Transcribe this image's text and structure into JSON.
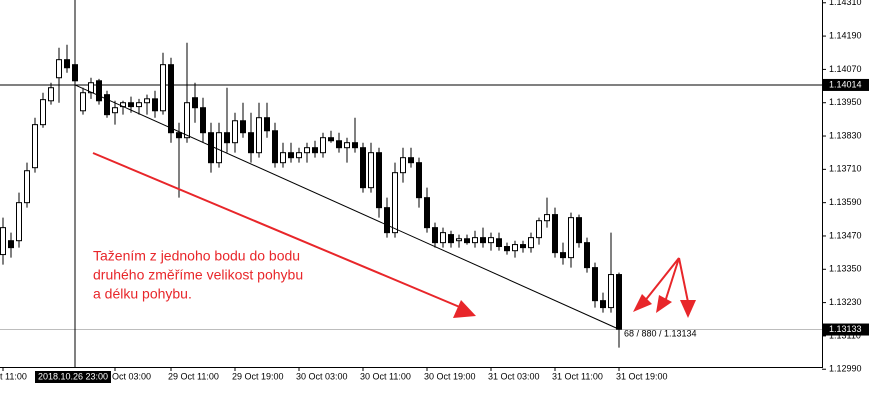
{
  "chart_data": {
    "type": "candlestick",
    "up_color": "#ffffff",
    "down_color": "#000000",
    "edge_color": "#000000",
    "ylim": [
      1.1298,
      1.1432
    ],
    "yticks": [
      {
        "value": 1.1431,
        "label": "1.14310"
      },
      {
        "value": 1.1419,
        "label": "1.14190"
      },
      {
        "value": 1.1407,
        "label": "1.14070"
      },
      {
        "value": 1.1395,
        "label": "1.13950"
      },
      {
        "value": 1.1383,
        "label": "1.13830"
      },
      {
        "value": 1.1371,
        "label": "1.13710"
      },
      {
        "value": 1.1359,
        "label": "1.13590"
      },
      {
        "value": 1.1347,
        "label": "1.13470"
      },
      {
        "value": 1.1335,
        "label": "1.13350"
      },
      {
        "value": 1.1323,
        "label": "1.13230"
      },
      {
        "value": 1.1311,
        "label": "1.13110"
      },
      {
        "value": 1.1299,
        "label": "1.12990"
      }
    ],
    "categories": [
      "t 11:00",
      null,
      null,
      null,
      null,
      null,
      null,
      null,
      null,
      null,
      null,
      null,
      null,
      null,
      "Oct 03:00",
      null,
      null,
      null,
      null,
      null,
      null,
      "29 Oct 11:00",
      null,
      null,
      null,
      null,
      null,
      null,
      null,
      "29 Oct 19:00",
      null,
      null,
      null,
      null,
      null,
      null,
      null,
      "30 Oct 03:00",
      null,
      null,
      null,
      null,
      null,
      null,
      null,
      "30 Oct 11:00",
      null,
      null,
      null,
      null,
      null,
      null,
      null,
      "30 Oct 19:00",
      null,
      null,
      null,
      null,
      null,
      null,
      null,
      "31 Oct 03:00",
      null,
      null,
      null,
      null,
      null,
      null,
      null,
      "31 Oct 11:00",
      null,
      null,
      null,
      null,
      null,
      null,
      null,
      "31 Oct 19:00"
    ],
    "candles": [
      {
        "open": 1.13403,
        "high": 1.13536,
        "low": 1.13367,
        "close": 1.135
      },
      {
        "open": 1.13453,
        "high": 1.13482,
        "low": 1.13392,
        "close": 1.13428
      },
      {
        "open": 1.13453,
        "high": 1.13626,
        "low": 1.13428,
        "close": 1.1359
      },
      {
        "open": 1.1359,
        "high": 1.13734,
        "low": 1.13572,
        "close": 1.13705
      },
      {
        "open": 1.13716,
        "high": 1.13896,
        "low": 1.13698,
        "close": 1.13871
      },
      {
        "open": 1.13871,
        "high": 1.13986,
        "low": 1.1386,
        "close": 1.13961
      },
      {
        "open": 1.13957,
        "high": 1.14022,
        "low": 1.13943,
        "close": 1.14004
      },
      {
        "open": 1.1404,
        "high": 1.14148,
        "low": 1.1395,
        "close": 1.14105
      },
      {
        "open": 1.14105,
        "high": 1.14159,
        "low": 1.14058,
        "close": 1.14076
      },
      {
        "open": 1.14087,
        "high": 1.1413,
        "low": 1.14022,
        "close": 1.14029
      },
      {
        "open": 1.13921,
        "high": 1.14004,
        "low": 1.13907,
        "close": 1.13986
      },
      {
        "open": 1.13986,
        "high": 1.1404,
        "low": 1.13964,
        "close": 1.14022
      },
      {
        "open": 1.14029,
        "high": 1.14036,
        "low": 1.13943,
        "close": 1.13957
      },
      {
        "open": 1.13979,
        "high": 1.13993,
        "low": 1.13896,
        "close": 1.13907
      },
      {
        "open": 1.13914,
        "high": 1.13957,
        "low": 1.13871,
        "close": 1.13932
      },
      {
        "open": 1.13936,
        "high": 1.13957,
        "low": 1.13907,
        "close": 1.1395
      },
      {
        "open": 1.1395,
        "high": 1.13972,
        "low": 1.13914,
        "close": 1.13936
      },
      {
        "open": 1.13936,
        "high": 1.13964,
        "low": 1.13907,
        "close": 1.1395
      },
      {
        "open": 1.1395,
        "high": 1.13979,
        "low": 1.13907,
        "close": 1.13964
      },
      {
        "open": 1.13964,
        "high": 1.13993,
        "low": 1.13896,
        "close": 1.13921
      },
      {
        "open": 1.13921,
        "high": 1.1413,
        "low": 1.13907,
        "close": 1.14087
      },
      {
        "open": 1.14087,
        "high": 1.14112,
        "low": 1.13806,
        "close": 1.13842
      },
      {
        "open": 1.13842,
        "high": 1.13878,
        "low": 1.13608,
        "close": 1.13824
      },
      {
        "open": 1.13824,
        "high": 1.14166,
        "low": 1.13806,
        "close": 1.1395
      },
      {
        "open": 1.13968,
        "high": 1.14022,
        "low": 1.13878,
        "close": 1.13932
      },
      {
        "open": 1.13932,
        "high": 1.13968,
        "low": 1.13806,
        "close": 1.13842
      },
      {
        "open": 1.13842,
        "high": 1.13878,
        "low": 1.13698,
        "close": 1.13734
      },
      {
        "open": 1.13734,
        "high": 1.13878,
        "low": 1.13716,
        "close": 1.13842
      },
      {
        "open": 1.13842,
        "high": 1.14004,
        "low": 1.1377,
        "close": 1.13806
      },
      {
        "open": 1.13806,
        "high": 1.13914,
        "low": 1.1377,
        "close": 1.13885
      },
      {
        "open": 1.13885,
        "high": 1.1395,
        "low": 1.13824,
        "close": 1.13842
      },
      {
        "open": 1.13842,
        "high": 1.13914,
        "low": 1.13734,
        "close": 1.1377
      },
      {
        "open": 1.1377,
        "high": 1.1395,
        "low": 1.13752,
        "close": 1.13896
      },
      {
        "open": 1.13896,
        "high": 1.1395,
        "low": 1.13824,
        "close": 1.13849
      },
      {
        "open": 1.13849,
        "high": 1.13878,
        "low": 1.13716,
        "close": 1.13734
      },
      {
        "open": 1.13734,
        "high": 1.13806,
        "low": 1.13716,
        "close": 1.1377
      },
      {
        "open": 1.1377,
        "high": 1.13806,
        "low": 1.13734,
        "close": 1.13752
      },
      {
        "open": 1.13752,
        "high": 1.13788,
        "low": 1.13734,
        "close": 1.1377
      },
      {
        "open": 1.1377,
        "high": 1.13806,
        "low": 1.13734,
        "close": 1.13788
      },
      {
        "open": 1.13788,
        "high": 1.13813,
        "low": 1.13752,
        "close": 1.1377
      },
      {
        "open": 1.1377,
        "high": 1.13842,
        "low": 1.13752,
        "close": 1.13824
      },
      {
        "open": 1.13824,
        "high": 1.13849,
        "low": 1.13806,
        "close": 1.13813
      },
      {
        "open": 1.13813,
        "high": 1.13842,
        "low": 1.1377,
        "close": 1.13788
      },
      {
        "open": 1.13788,
        "high": 1.13824,
        "low": 1.13734,
        "close": 1.13806
      },
      {
        "open": 1.13806,
        "high": 1.13896,
        "low": 1.1377,
        "close": 1.13788
      },
      {
        "open": 1.13788,
        "high": 1.13806,
        "low": 1.13626,
        "close": 1.13644
      },
      {
        "open": 1.13644,
        "high": 1.13806,
        "low": 1.13626,
        "close": 1.1377
      },
      {
        "open": 1.1377,
        "high": 1.13788,
        "low": 1.13536,
        "close": 1.13572
      },
      {
        "open": 1.13572,
        "high": 1.13608,
        "low": 1.13464,
        "close": 1.13482
      },
      {
        "open": 1.13482,
        "high": 1.13734,
        "low": 1.13464,
        "close": 1.13698
      },
      {
        "open": 1.13698,
        "high": 1.13788,
        "low": 1.13662,
        "close": 1.13752
      },
      {
        "open": 1.13752,
        "high": 1.13788,
        "low": 1.13716,
        "close": 1.13734
      },
      {
        "open": 1.13734,
        "high": 1.13752,
        "low": 1.13572,
        "close": 1.13608
      },
      {
        "open": 1.13608,
        "high": 1.13644,
        "low": 1.13482,
        "close": 1.135
      },
      {
        "open": 1.135,
        "high": 1.13518,
        "low": 1.13428,
        "close": 1.13446
      },
      {
        "open": 1.13446,
        "high": 1.135,
        "low": 1.13428,
        "close": 1.13482
      },
      {
        "open": 1.13475,
        "high": 1.13489,
        "low": 1.13428,
        "close": 1.13446
      },
      {
        "open": 1.13453,
        "high": 1.13475,
        "low": 1.13428,
        "close": 1.1346
      },
      {
        "open": 1.1346,
        "high": 1.13475,
        "low": 1.13439,
        "close": 1.13446
      },
      {
        "open": 1.13446,
        "high": 1.13489,
        "low": 1.13428,
        "close": 1.13464
      },
      {
        "open": 1.13464,
        "high": 1.135,
        "low": 1.13428,
        "close": 1.13446
      },
      {
        "open": 1.13446,
        "high": 1.13482,
        "low": 1.13417,
        "close": 1.13464
      },
      {
        "open": 1.1346,
        "high": 1.13482,
        "low": 1.13417,
        "close": 1.13432
      },
      {
        "open": 1.13432,
        "high": 1.13446,
        "low": 1.13403,
        "close": 1.13417
      },
      {
        "open": 1.13417,
        "high": 1.13453,
        "low": 1.13392,
        "close": 1.13439
      },
      {
        "open": 1.13439,
        "high": 1.13453,
        "low": 1.1341,
        "close": 1.13428
      },
      {
        "open": 1.13428,
        "high": 1.13482,
        "low": 1.1341,
        "close": 1.13464
      },
      {
        "open": 1.13464,
        "high": 1.13536,
        "low": 1.13439,
        "close": 1.13525
      },
      {
        "open": 1.13525,
        "high": 1.13608,
        "low": 1.135,
        "close": 1.13547
      },
      {
        "open": 1.13547,
        "high": 1.13572,
        "low": 1.13392,
        "close": 1.1341
      },
      {
        "open": 1.1341,
        "high": 1.13446,
        "low": 1.13367,
        "close": 1.13392
      },
      {
        "open": 1.13392,
        "high": 1.13554,
        "low": 1.13356,
        "close": 1.13536
      },
      {
        "open": 1.13536,
        "high": 1.13547,
        "low": 1.13428,
        "close": 1.13446
      },
      {
        "open": 1.13446,
        "high": 1.13464,
        "low": 1.13338,
        "close": 1.13356
      },
      {
        "open": 1.13356,
        "high": 1.13374,
        "low": 1.13212,
        "close": 1.13237
      },
      {
        "open": 1.13237,
        "high": 1.13266,
        "low": 1.13194,
        "close": 1.13212
      },
      {
        "open": 1.13212,
        "high": 1.13482,
        "low": 1.13194,
        "close": 1.13331
      },
      {
        "open": 1.13331,
        "high": 1.13338,
        "low": 1.13068,
        "close": 1.13134
      }
    ],
    "crosshair": {
      "time": "2018.10.26 23:00",
      "bar": 9,
      "price": 1.14014
    },
    "bid": 1.13133,
    "trendline": {
      "from_bar": 9,
      "from_price": 1.14014,
      "to_bar": 77,
      "to_price": 1.13134,
      "label": "68 / 880 / 1.13134"
    },
    "annotation": [
      "Tažením z jednoho bodu do bodu",
      "druhého změříme velikost pohybu",
      "a délku pohybu."
    ]
  }
}
